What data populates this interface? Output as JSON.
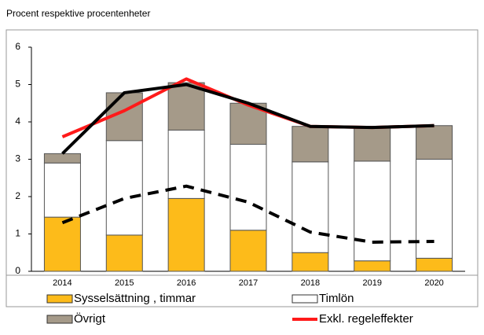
{
  "chart_data": {
    "type": "bar",
    "stacked": true,
    "subtitle": "Procent respektive procentenheter",
    "categories": [
      "2014",
      "2015",
      "2016",
      "2017",
      "2018",
      "2019",
      "2020"
    ],
    "ylim": [
      0,
      6
    ],
    "yticks": [
      0,
      1,
      2,
      3,
      4,
      5,
      6
    ],
    "series": [
      {
        "name": "Sysselsättning , timmar",
        "type": "bar",
        "color": "#fdbb1a",
        "values": [
          1.45,
          0.97,
          1.95,
          1.1,
          0.5,
          0.28,
          0.35
        ]
      },
      {
        "name": "Timlön",
        "type": "bar",
        "color": "#ffffff",
        "values": [
          1.45,
          2.53,
          1.83,
          2.3,
          2.43,
          2.67,
          2.65
        ]
      },
      {
        "name": "Övrigt",
        "type": "bar",
        "color": "#a59a89",
        "values": [
          0.25,
          1.28,
          1.27,
          1.1,
          0.95,
          0.9,
          0.9
        ]
      },
      {
        "name": "Exkl. regeleffekter",
        "type": "line",
        "color": "#ff1a1a",
        "values": [
          3.6,
          4.3,
          5.15,
          4.45,
          3.88,
          3.85,
          3.9
        ]
      },
      {
        "type": "line",
        "color": "#000000",
        "values": [
          3.15,
          4.78,
          5.0,
          4.5,
          3.88,
          3.85,
          3.9
        ]
      },
      {
        "type": "line",
        "color": "#000000",
        "dashed": true,
        "values": [
          1.3,
          1.95,
          2.28,
          1.85,
          1.05,
          0.78,
          0.8
        ]
      }
    ]
  }
}
